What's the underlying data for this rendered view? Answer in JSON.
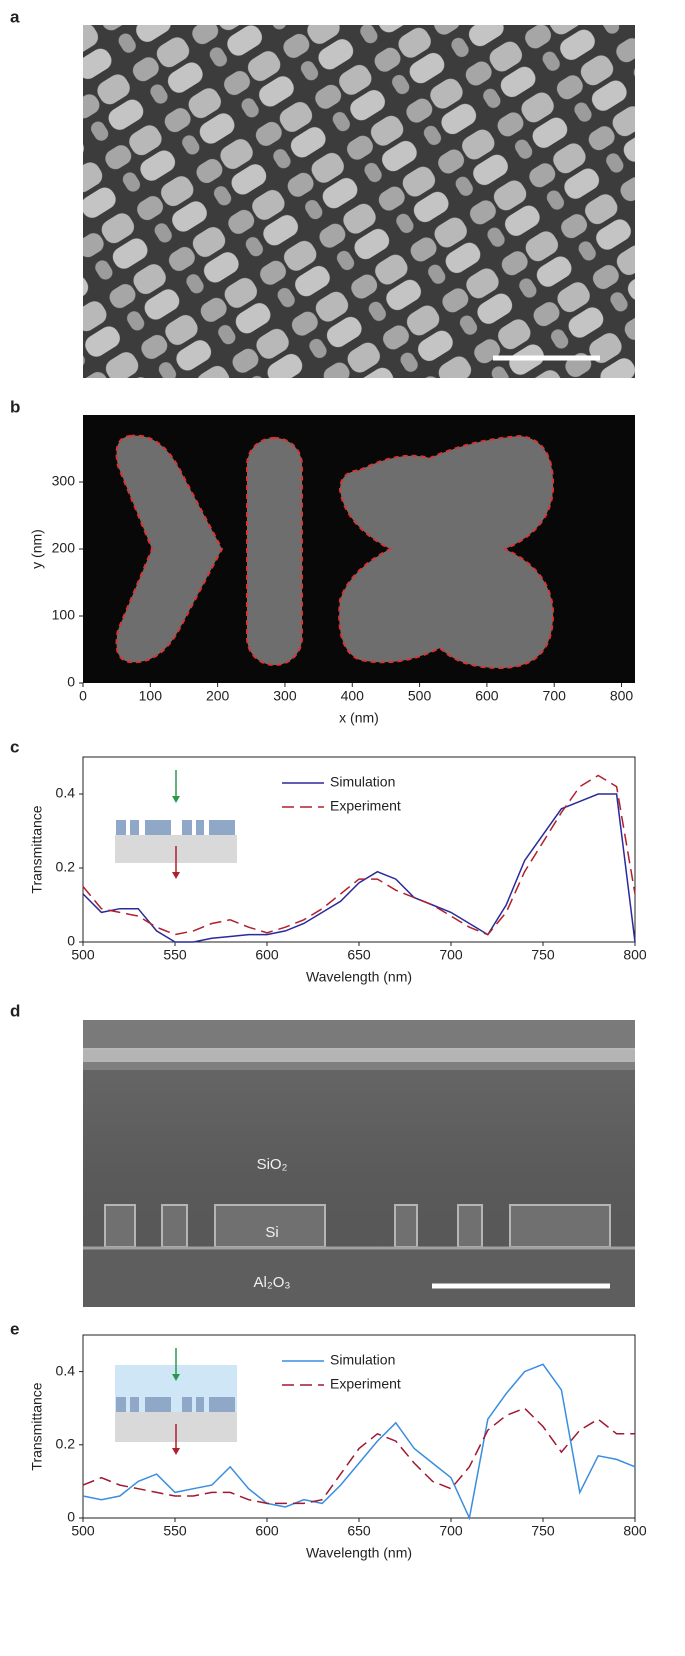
{
  "panel_labels": [
    "a",
    "b",
    "c",
    "d",
    "e"
  ],
  "image_text": [
    "SiO₂",
    "Si",
    "Al₂O₃"
  ],
  "chart_data": [
    {
      "type": "image",
      "xlabel": "x (nm)",
      "ylabel": "y (nm)",
      "xlim": [
        0,
        820
      ],
      "ylim": [
        0,
        400
      ],
      "xticks": [
        0,
        100,
        200,
        300,
        400,
        500,
        600,
        700,
        800
      ],
      "yticks": [
        0,
        100,
        200,
        300
      ]
    },
    {
      "type": "line",
      "xlabel": "Wavelength (nm)",
      "ylabel": "Transmittance",
      "xlim": [
        500,
        800
      ],
      "ylim": [
        0,
        0.5
      ],
      "xticks": [
        500,
        550,
        600,
        650,
        700,
        750,
        800
      ],
      "yticks": [
        0,
        0.2,
        0.4
      ],
      "x": [
        500,
        510,
        520,
        530,
        540,
        550,
        560,
        570,
        580,
        590,
        600,
        610,
        620,
        630,
        640,
        650,
        660,
        670,
        680,
        690,
        700,
        710,
        720,
        730,
        740,
        750,
        760,
        770,
        780,
        790,
        800
      ],
      "series": [
        {
          "name": "Simulation",
          "color": "#2a2a9c",
          "linestyle": "solid",
          "values": [
            0.13,
            0.08,
            0.09,
            0.09,
            0.03,
            0.0,
            0.0,
            0.01,
            0.015,
            0.02,
            0.02,
            0.03,
            0.05,
            0.08,
            0.11,
            0.16,
            0.19,
            0.17,
            0.12,
            0.1,
            0.08,
            0.05,
            0.02,
            0.1,
            0.22,
            0.29,
            0.36,
            0.38,
            0.4,
            0.4,
            0.0
          ]
        },
        {
          "name": "Experiment",
          "color": "#b0202c",
          "linestyle": "dashed",
          "values": [
            0.15,
            0.09,
            0.08,
            0.07,
            0.04,
            0.02,
            0.03,
            0.05,
            0.06,
            0.04,
            0.025,
            0.04,
            0.06,
            0.09,
            0.13,
            0.17,
            0.17,
            0.14,
            0.12,
            0.1,
            0.07,
            0.04,
            0.02,
            0.08,
            0.19,
            0.27,
            0.35,
            0.42,
            0.45,
            0.42,
            0.13
          ]
        }
      ]
    },
    {
      "type": "line",
      "xlabel": "Wavelength (nm)",
      "ylabel": "Transmittance",
      "xlim": [
        500,
        800
      ],
      "ylim": [
        0,
        0.5
      ],
      "xticks": [
        500,
        550,
        600,
        650,
        700,
        750,
        800
      ],
      "yticks": [
        0,
        0.2,
        0.4
      ],
      "x": [
        500,
        510,
        520,
        530,
        540,
        550,
        560,
        570,
        580,
        590,
        600,
        610,
        620,
        630,
        640,
        650,
        660,
        670,
        680,
        690,
        700,
        710,
        720,
        730,
        740,
        750,
        760,
        770,
        780,
        790,
        800
      ],
      "series": [
        {
          "name": "Simulation",
          "color": "#3a8de0",
          "linestyle": "solid",
          "values": [
            0.06,
            0.05,
            0.06,
            0.1,
            0.12,
            0.07,
            0.08,
            0.09,
            0.14,
            0.08,
            0.04,
            0.03,
            0.05,
            0.04,
            0.09,
            0.15,
            0.21,
            0.26,
            0.19,
            0.15,
            0.11,
            0.0,
            0.27,
            0.34,
            0.4,
            0.42,
            0.35,
            0.07,
            0.17,
            0.16,
            0.14
          ]
        },
        {
          "name": "Experiment",
          "color": "#a01830",
          "linestyle": "dashed",
          "values": [
            0.09,
            0.11,
            0.09,
            0.08,
            0.07,
            0.06,
            0.06,
            0.07,
            0.07,
            0.05,
            0.04,
            0.04,
            0.04,
            0.05,
            0.12,
            0.19,
            0.23,
            0.21,
            0.15,
            0.1,
            0.08,
            0.14,
            0.24,
            0.28,
            0.3,
            0.25,
            0.18,
            0.24,
            0.27,
            0.23,
            0.23
          ]
        }
      ]
    }
  ]
}
